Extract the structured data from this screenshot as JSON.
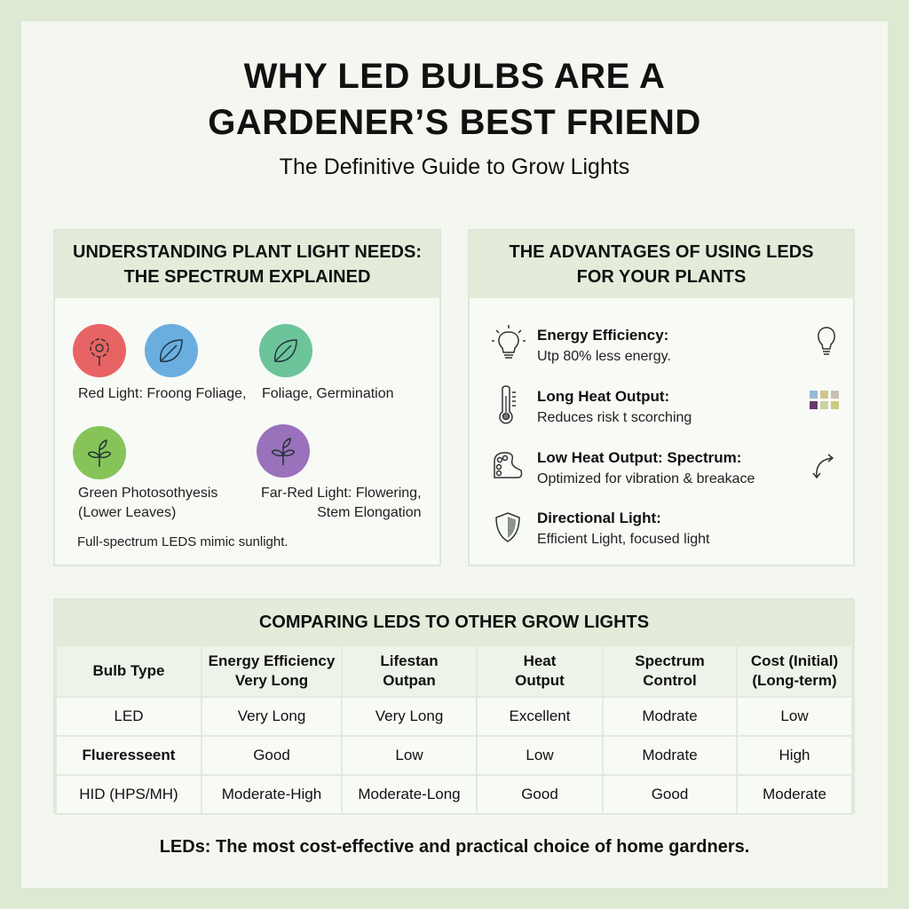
{
  "title_line1": "WHY LED BULBS ARE A",
  "title_line2": "GARDENER’S BEST FRIEND",
  "subtitle": "The Definitive Guide to Grow Lights",
  "spectrum": {
    "heading_line1": "UNDERSTANDING PLANT LIGHT NEEDS:",
    "heading_line2": "THE SPECTRUM EXPLAINED",
    "icons": [
      {
        "icon": "flower-icon",
        "color": "#e86464"
      },
      {
        "icon": "leaf-icon",
        "color": "#6aaee0"
      },
      {
        "icon": "leaf-icon",
        "color": "#6cc49a"
      },
      {
        "icon": "sprout-icon",
        "color": "#86c45a"
      },
      {
        "icon": "sprout-icon",
        "color": "#9a72bc"
      }
    ],
    "label_red": "Red Light: Froong Foliage,",
    "label_blue": "Foliage, Germination",
    "label_green_1": "Green Photosothyesis",
    "label_green_2": "(Lower Leaves)",
    "label_farred_1": "Far-Red Light: Flowering,",
    "label_farred_2": "Stem Elongation",
    "note": "Full-spectrum LEDS mimic sunlight."
  },
  "advantages": {
    "heading_line1": "THE ADVANTAGES OF USING LEDS",
    "heading_line2": "FOR YOUR PLANTS",
    "items": [
      {
        "title": "Energy Efficiency:",
        "desc": "Utp 80% less energy.",
        "icon": "lightbulb-icon",
        "side_icon": "lightbulb-icon"
      },
      {
        "title": "Long Heat Output:",
        "desc": "Reduces risk t scorching",
        "icon": "thermometer-icon",
        "side_icon": "color-grid-icon"
      },
      {
        "title": "Low Heat Output: Spectrum:",
        "desc": "Optimized for vibration & breakace",
        "icon": "palette-icon",
        "side_icon": "curved-arrows-icon"
      },
      {
        "title": "Directional Light:",
        "desc": "Efficient Light, focused light",
        "icon": "shield-icon",
        "side_icon": ""
      }
    ]
  },
  "comparison": {
    "heading": "COMPARING LEDS TO OTHER GROW LIGHTS",
    "headers": [
      [
        "Bulb Type",
        ""
      ],
      [
        "Energy Efficiency",
        "Very Long"
      ],
      [
        "Lifestan",
        "Outpan"
      ],
      [
        "Heat",
        "Output"
      ],
      [
        "Spectrum",
        "Control"
      ],
      [
        "Cost (Initial)",
        "(Long-term)"
      ]
    ],
    "rows": [
      [
        "LED",
        "Very Long",
        "Very Long",
        "Excellent",
        "Modrate",
        "Low"
      ],
      [
        "Flueresseent",
        "Good",
        "Low",
        "Low",
        "Modrate",
        "High"
      ],
      [
        "HID (HPS/MH)",
        "Moderate-High",
        "Moderate-Long",
        "Good",
        "Good",
        "Moderate"
      ]
    ]
  },
  "footer": "LEDs: The most cost-effective and practical choice of home gardners."
}
